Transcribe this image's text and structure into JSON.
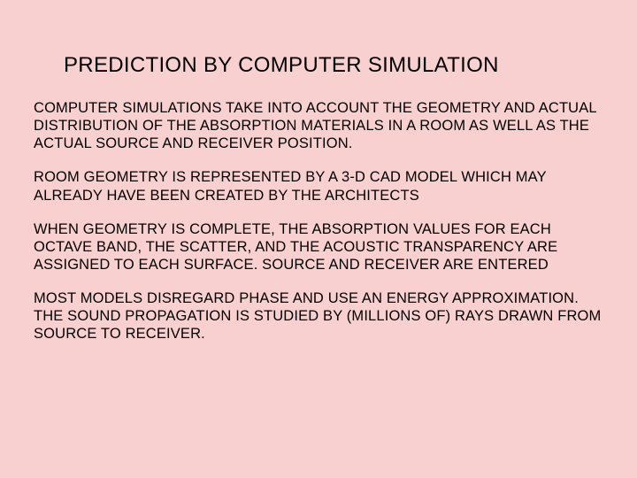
{
  "slide": {
    "title": "PREDICTION BY COMPUTER SIMULATION",
    "paragraphs": [
      "COMPUTER SIMULATIONS TAKE INTO ACCOUNT THE GEOMETRY AND ACTUAL DISTRIBUTION OF THE ABSORPTION MATERIALS IN A ROOM AS WELL AS THE ACTUAL SOURCE AND RECEIVER POSITION.",
      "ROOM GEOMETRY IS REPRESENTED BY A 3-D CAD MODEL WHICH MAY ALREADY HAVE BEEN CREATED BY THE ARCHITECTS",
      "WHEN GEOMETRY IS COMPLETE, THE ABSORPTION VALUES FOR EACH OCTAVE BAND, THE SCATTER, AND THE ACOUSTIC TRANSPARENCY ARE ASSIGNED TO EACH SURFACE.  SOURCE AND RECEIVER ARE ENTERED",
      "MOST MODELS DISREGARD PHASE AND USE AN ENERGY APPROXIMATION.  THE SOUND PROPAGATION IS STUDIED BY (MILLIONS OF) RAYS DRAWN FROM SOURCE TO RECEIVER."
    ],
    "background_color": "#f8d0d0",
    "text_color": "#000000",
    "title_fontsize": 24,
    "body_fontsize": 16.5,
    "font_family": "Arial"
  }
}
